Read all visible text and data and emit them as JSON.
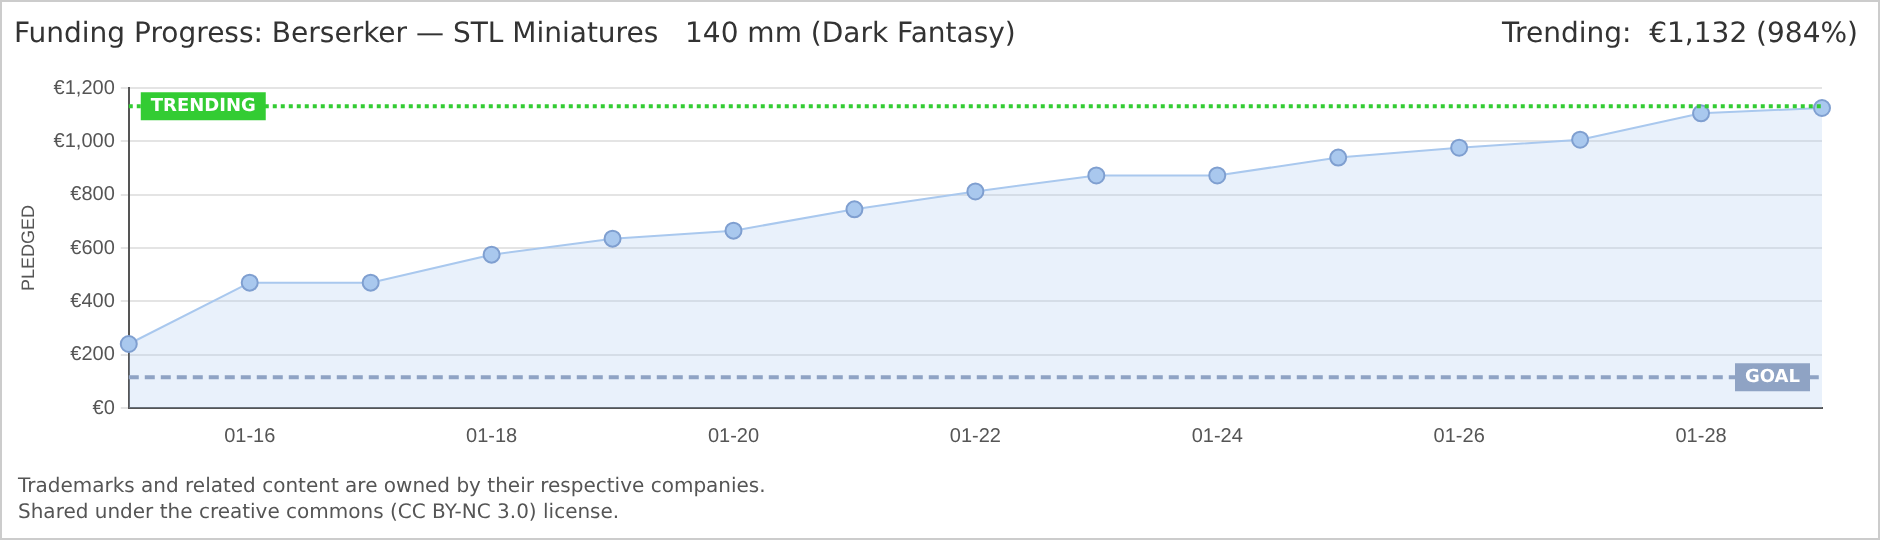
{
  "chart_data": {
    "type": "area",
    "title": "Funding Progress: Berserker — STL Miniatures   140 mm (Dark Fantasy)",
    "subtitle": "Trending:  €1,132 (984%)",
    "ylabel": "PLEDGED",
    "categories": [
      null,
      "01-16",
      null,
      "01-18",
      null,
      "01-20",
      null,
      "01-22",
      null,
      "01-24",
      null,
      "01-26",
      null,
      "01-28",
      null
    ],
    "series": [
      {
        "color": "#a9c8ee",
        "values": [
          240,
          470,
          470,
          575,
          635,
          665,
          745,
          812,
          872,
          872,
          939,
          976,
          1006,
          1105,
          1125
        ]
      }
    ],
    "ylim": [
      0,
      1200
    ],
    "yticks": [
      {
        "value": 0,
        "label": "€0"
      },
      {
        "value": 200,
        "label": "€200"
      },
      {
        "value": 400,
        "label": "€400"
      },
      {
        "value": 600,
        "label": "€600"
      },
      {
        "value": 800,
        "label": "€800"
      },
      {
        "value": 1000,
        "label": "€1,000"
      },
      {
        "value": 1200,
        "label": "€1,200"
      }
    ],
    "grid": "y",
    "marker": "circle",
    "legend": false,
    "ref_lines": [
      {
        "axis": "y",
        "value": 1132,
        "label": "TRENDING",
        "color": "#33cc33",
        "line_style": "dotted"
      },
      {
        "axis": "y",
        "value": 115,
        "label": "GOAL",
        "color": "#8fa3c4",
        "line_style": "dashed"
      }
    ],
    "annotations": [
      "Trademarks and related content are owned by their respective companies.",
      "Shared under the creative commons (CC BY-NC 3.0) license."
    ]
  }
}
